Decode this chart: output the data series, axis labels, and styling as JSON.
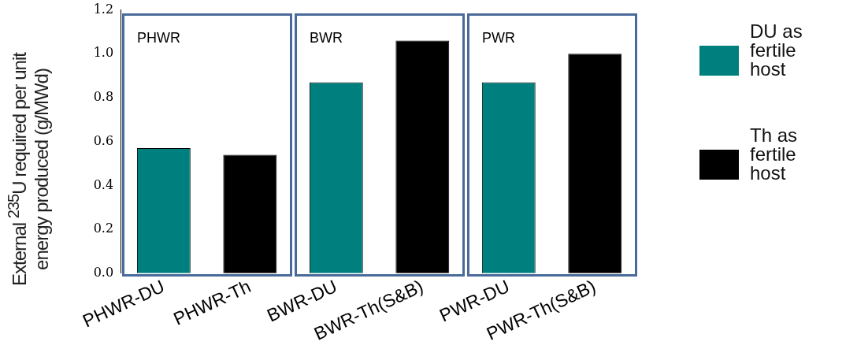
{
  "chart_data": {
    "type": "bar",
    "ylabel": "External $^{235}$U required per unit energy produced (g/MWd)",
    "categories": [
      "PHWR-DU",
      "PHWR-Th",
      "BWR-DU",
      "BWR-Th(S&B)",
      "PWR-DU",
      "PWR-Th(S&B)"
    ],
    "series": [
      {
        "name": "DU as fertile host",
        "color": "#007f7f",
        "values": [
          0.57,
          null,
          0.87,
          null,
          0.87,
          null
        ]
      },
      {
        "name": "Th as fertile host",
        "color": "#000000",
        "values": [
          null,
          0.54,
          null,
          1.06,
          null,
          1.0
        ]
      }
    ],
    "annotations": [
      "PHWR",
      "BWR",
      "PWR"
    ],
    "ylim": [
      0,
      1.2
    ],
    "yticks": [
      {
        "value": 0,
        "label": "0.0"
      },
      0.2,
      0.4,
      0.6,
      0.8,
      {
        "value": 1,
        "label": "1.0"
      },
      1.2
    ],
    "grid": false,
    "legend": "right"
  }
}
